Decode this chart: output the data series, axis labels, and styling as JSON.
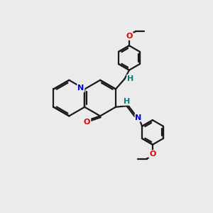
{
  "background_color": "#ebebeb",
  "bond_color": "#1a1a1a",
  "n_color": "#0000e0",
  "o_color": "#e00000",
  "h_color": "#008080",
  "line_width": 1.6,
  "figsize": [
    3.0,
    3.0
  ],
  "dpi": 100,
  "xlim": [
    0,
    10
  ],
  "ylim": [
    0,
    10
  ]
}
